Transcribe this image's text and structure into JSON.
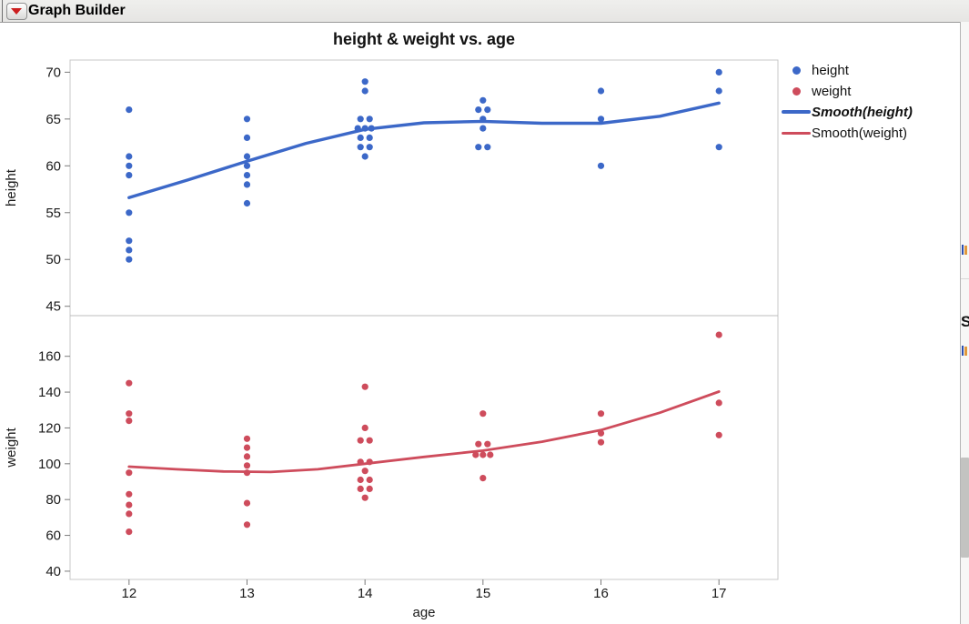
{
  "window": {
    "title": "Graph Builder",
    "disclosure_icon": "red-triangle-down"
  },
  "legend": {
    "items": [
      {
        "label": "height",
        "marker": "dot",
        "color": "#3c68c8",
        "emphasis": false
      },
      {
        "label": "weight",
        "marker": "dot",
        "color": "#ce4c5c",
        "emphasis": false
      },
      {
        "label": "Smooth(height)",
        "marker": "line",
        "color": "#3c68c8",
        "emphasis": true
      },
      {
        "label": "Smooth(weight)",
        "marker": "line",
        "color": "#ce4c5c",
        "emphasis": false
      }
    ]
  },
  "right_edge": {
    "partial_text": "S",
    "has_scrollbar": true
  },
  "chart_data": {
    "type": "scatter",
    "title": "height & weight vs. age",
    "xlabel": "age",
    "xlim": [
      11.5,
      17.5
    ],
    "x_ticks": [
      12,
      13,
      14,
      15,
      16,
      17
    ],
    "grid": false,
    "legend_position": "right-top",
    "point_color_height": "#3c68c8",
    "point_color_weight": "#ce4c5c",
    "panels": [
      {
        "ylabel": "height",
        "yticks": [
          45,
          50,
          55,
          60,
          65,
          70
        ],
        "ylim": [
          44.0,
          71.3
        ],
        "scatter": {
          "name": "height",
          "color": "#3c68c8",
          "points": [
            [
              12,
              66,
              0
            ],
            [
              12,
              61,
              0
            ],
            [
              12,
              60,
              0
            ],
            [
              12,
              59,
              0
            ],
            [
              12,
              55,
              0
            ],
            [
              12,
              52,
              0
            ],
            [
              12,
              51,
              0
            ],
            [
              12,
              50,
              0
            ],
            [
              13,
              65,
              0
            ],
            [
              13,
              63,
              0
            ],
            [
              13,
              61,
              0
            ],
            [
              13,
              60,
              0
            ],
            [
              13,
              59,
              0
            ],
            [
              13,
              58,
              0
            ],
            [
              13,
              56,
              0
            ],
            [
              14,
              69,
              0
            ],
            [
              14,
              68,
              0
            ],
            [
              14,
              65,
              -5
            ],
            [
              14,
              65,
              5
            ],
            [
              14,
              64,
              -8
            ],
            [
              14,
              64,
              0
            ],
            [
              14,
              64,
              7
            ],
            [
              14,
              63,
              -5
            ],
            [
              14,
              63,
              5
            ],
            [
              14,
              62,
              -5
            ],
            [
              14,
              62,
              5
            ],
            [
              14,
              61,
              0
            ],
            [
              15,
              67,
              0
            ],
            [
              15,
              66,
              -5
            ],
            [
              15,
              66,
              5
            ],
            [
              15,
              65,
              0
            ],
            [
              15,
              64,
              0
            ],
            [
              15,
              62,
              -5
            ],
            [
              15,
              62,
              5
            ],
            [
              16,
              68,
              0
            ],
            [
              16,
              65,
              0
            ],
            [
              16,
              60,
              0
            ],
            [
              17,
              70,
              0
            ],
            [
              17,
              68,
              0
            ],
            [
              17,
              62,
              0
            ]
          ]
        },
        "smooth": {
          "name": "Smooth(height)",
          "color": "#3c68c8",
          "width": 3.4,
          "path": [
            [
              12,
              56.6
            ],
            [
              12.5,
              58.5
            ],
            [
              13,
              60.5
            ],
            [
              13.5,
              62.4
            ],
            [
              14,
              63.9
            ],
            [
              14.5,
              64.6
            ],
            [
              15,
              64.75
            ],
            [
              15.5,
              64.55
            ],
            [
              16,
              64.55
            ],
            [
              16.5,
              65.3
            ],
            [
              17,
              66.7
            ]
          ]
        }
      },
      {
        "ylabel": "weight",
        "yticks": [
          40,
          60,
          80,
          100,
          120,
          140,
          160
        ],
        "ylim": [
          35.4,
          182.7
        ],
        "scatter": {
          "name": "weight",
          "color": "#ce4c5c",
          "points": [
            [
              12,
              145,
              0
            ],
            [
              12,
              128,
              0
            ],
            [
              12,
              124,
              0
            ],
            [
              12,
              95,
              0
            ],
            [
              12,
              83,
              0
            ],
            [
              12,
              77,
              0
            ],
            [
              12,
              72,
              0
            ],
            [
              12,
              62,
              0
            ],
            [
              13,
              114,
              0
            ],
            [
              13,
              109,
              0
            ],
            [
              13,
              104,
              0
            ],
            [
              13,
              99,
              0
            ],
            [
              13,
              95,
              0
            ],
            [
              13,
              78,
              0
            ],
            [
              13,
              66,
              0
            ],
            [
              14,
              143,
              0
            ],
            [
              14,
              120,
              0
            ],
            [
              14,
              113,
              -5
            ],
            [
              14,
              113,
              5
            ],
            [
              14,
              101,
              -5
            ],
            [
              14,
              101,
              5
            ],
            [
              14,
              96,
              0
            ],
            [
              14,
              91,
              -5
            ],
            [
              14,
              91,
              5
            ],
            [
              14,
              86,
              -5
            ],
            [
              14,
              86,
              5
            ],
            [
              14,
              81,
              0
            ],
            [
              15,
              128,
              0
            ],
            [
              15,
              111,
              -5
            ],
            [
              15,
              111,
              5
            ],
            [
              15,
              105,
              -8
            ],
            [
              15,
              105,
              0
            ],
            [
              15,
              105,
              8
            ],
            [
              15,
              92,
              0
            ],
            [
              16,
              128,
              0
            ],
            [
              16,
              117,
              0
            ],
            [
              16,
              112,
              0
            ],
            [
              17,
              172,
              0
            ],
            [
              17,
              134,
              0
            ],
            [
              17,
              116,
              0
            ]
          ]
        },
        "smooth": {
          "name": "Smooth(weight)",
          "color": "#ce4c5c",
          "width": 2.8,
          "path": [
            [
              12,
              98.4
            ],
            [
              12.4,
              96.9
            ],
            [
              12.8,
              95.7
            ],
            [
              13.2,
              95.4
            ],
            [
              13.6,
              96.9
            ],
            [
              14,
              100.0
            ],
            [
              14.5,
              103.8
            ],
            [
              15,
              107.3
            ],
            [
              15.5,
              112.3
            ],
            [
              16,
              118.8
            ],
            [
              16.5,
              128.5
            ],
            [
              17,
              140.3
            ]
          ]
        }
      }
    ]
  }
}
